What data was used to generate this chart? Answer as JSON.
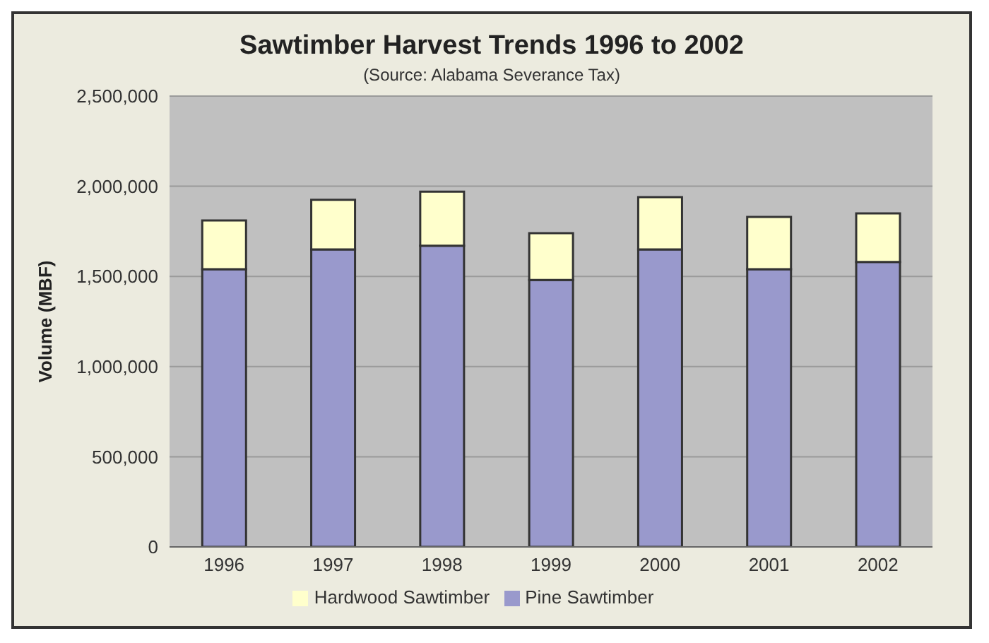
{
  "chart_data": {
    "type": "bar",
    "title": "Sawtimber Harvest Trends 1996 to 2002",
    "subtitle": "(Source: Alabama Severance Tax)",
    "ylabel": "Volume (MBF)",
    "categories": [
      "1996",
      "1997",
      "1998",
      "1999",
      "2000",
      "2001",
      "2002"
    ],
    "stacked": true,
    "series": [
      {
        "name": "Pine Sawtimber",
        "color": "#9999cc",
        "values": [
          1540000,
          1650000,
          1670000,
          1480000,
          1650000,
          1540000,
          1580000
        ]
      },
      {
        "name": "Hardwood Sawtimber",
        "color": "#ffffcc",
        "values": [
          270000,
          275000,
          300000,
          260000,
          290000,
          290000,
          270000
        ]
      }
    ],
    "ylim": [
      0,
      2500000
    ],
    "yticks": [
      0,
      {
        "value": 500000,
        "label": "500,000"
      },
      {
        "value": 1000000,
        "label": "1,000,000"
      },
      {
        "value": 1500000,
        "label": "1,500,000"
      },
      {
        "value": 2000000,
        "label": "2,000,000"
      },
      {
        "value": 2500000,
        "label": "2,500,000"
      }
    ],
    "grid": "y",
    "legend": "bottom"
  }
}
